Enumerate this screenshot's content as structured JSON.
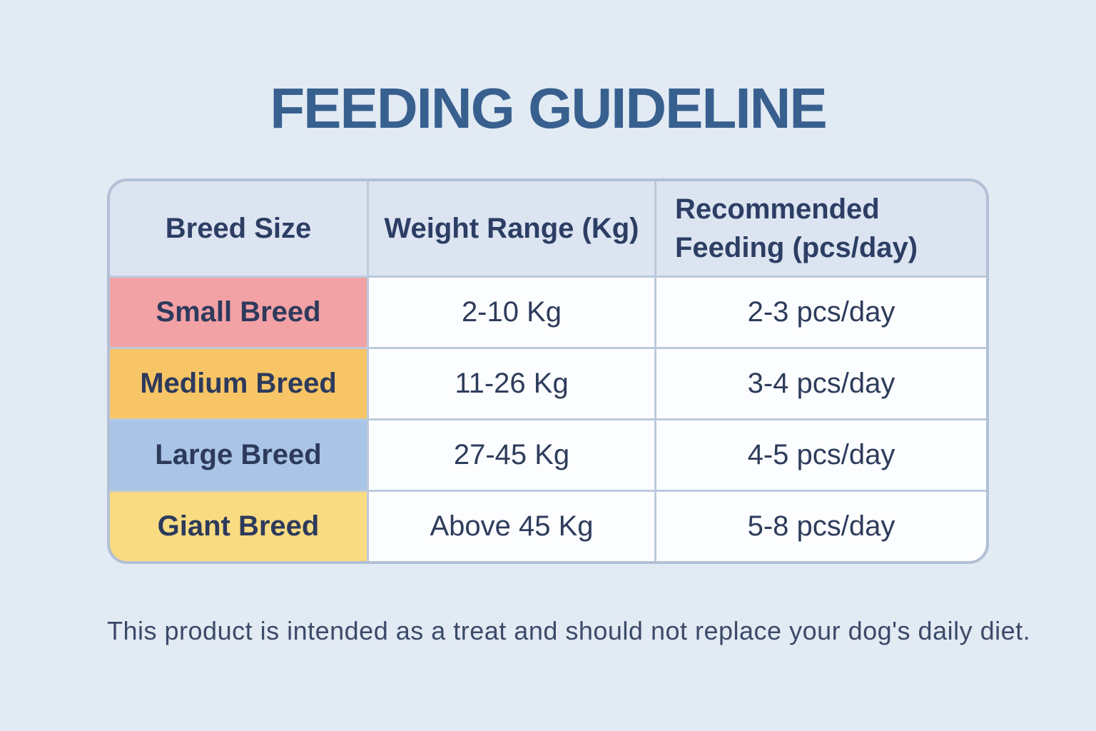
{
  "page": {
    "title": "FEEDING GUIDELINE",
    "footer_note": "This product is intended as a treat and should not replace your dog's daily diet."
  },
  "table": {
    "headers": {
      "breed": "Breed Size",
      "weight": "Weight Range (Kg)",
      "feeding": "Recommended Feeding (pcs/day)"
    },
    "rows": [
      {
        "breed": "Small Breed",
        "weight": "2-10 Kg",
        "feeding": "2-3 pcs/day",
        "row_color": "#f2a1a5"
      },
      {
        "breed": "Medium Breed",
        "weight": "11-26 Kg",
        "feeding": "3-4 pcs/day",
        "row_color": "#f7c566"
      },
      {
        "breed": "Large Breed",
        "weight": "27-45 Kg",
        "feeding": "4-5 pcs/day",
        "row_color": "#a9c4e7"
      },
      {
        "breed": "Giant Breed",
        "weight": "Above 45 Kg",
        "feeding": "5-8 pcs/day",
        "row_color": "#f9db81"
      }
    ]
  },
  "colors": {
    "page_background": "#e2eaf3",
    "title_text": "#38608f",
    "header_cell_background": "#dce4f1",
    "header_text": "#2c3e64",
    "data_cell_background": "#fcfdfe",
    "data_cell_text": "#2e3c5c",
    "breed_text": "#2d3a5c",
    "grid_line": "#bccadb",
    "outer_border": "#b2c0d5",
    "footer_text": "#3b4a68"
  },
  "chart_data": {
    "type": "table",
    "title": "FEEDING GUIDELINE",
    "columns": [
      "Breed Size",
      "Weight Range (Kg)",
      "Recommended Feeding (pcs/day)"
    ],
    "rows": [
      [
        "Small Breed",
        "2-10 Kg",
        "2-3 pcs/day"
      ],
      [
        "Medium Breed",
        "11-26 Kg",
        "3-4 pcs/day"
      ],
      [
        "Large Breed",
        "27-45 Kg",
        "4-5 pcs/day"
      ],
      [
        "Giant Breed",
        "Above 45 Kg",
        "5-8 pcs/day"
      ]
    ],
    "note": "This product is intended as a treat and should not replace your dog's daily diet.",
    "row_colors": [
      "#f2a1a5",
      "#f7c566",
      "#a9c4e7",
      "#f9db81"
    ],
    "layout_hints": {
      "header_background": "#dce4f1",
      "grid": true,
      "rounded_corners": true
    }
  }
}
